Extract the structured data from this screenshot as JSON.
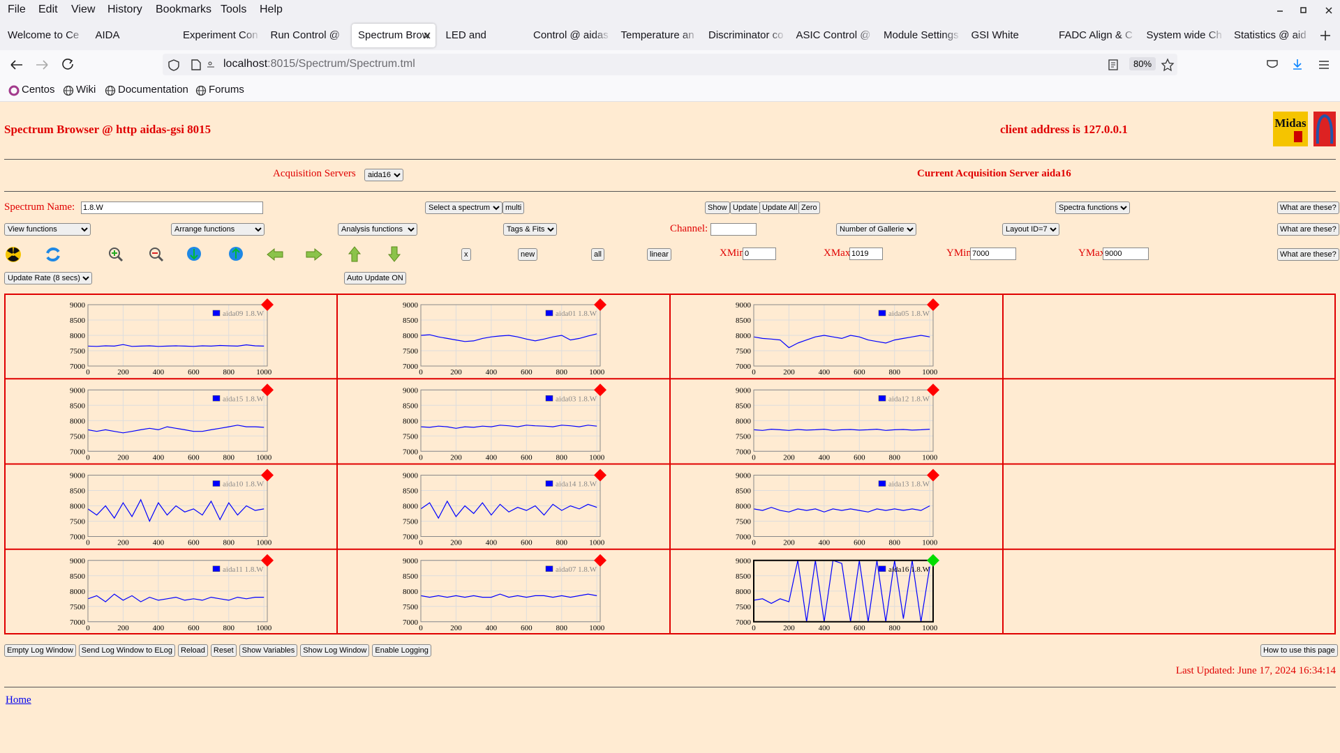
{
  "browser": {
    "menu": [
      "File",
      "Edit",
      "View",
      "History",
      "Bookmarks",
      "Tools",
      "Help"
    ],
    "tabs": [
      "Welcome to Ce",
      "AIDA",
      "Experiment Con",
      "Run Control @ a",
      "Spectrum Brow",
      "LED and Wavefo",
      "Control @ aidas",
      "Temperature an",
      "Discriminator co",
      "ASIC Control @",
      "Module Settings",
      "GSI White Rabbi",
      "FADC Align & C",
      "System wide Ch",
      "Statistics @ aid"
    ],
    "active_tab": 4,
    "url_host": "localhost",
    "url_path": ":8015/Spectrum/Spectrum.tml",
    "zoom": "80%",
    "bookmarks": [
      "Centos",
      "Wiki",
      "Documentation",
      "Forums"
    ]
  },
  "page": {
    "title": "Spectrum Browser @ http aidas-gsi 8015",
    "client_address": "client address is 127.0.0.1",
    "logo_text": "Midas",
    "acq_label": "Acquisition Servers",
    "acq_select": "aida16",
    "current_server": "Current Acquisition Server aida16",
    "spectrum_name_label": "Spectrum Name:",
    "spectrum_name": "1.8.W",
    "select_spectrum": "Select a spectrum",
    "multi": "multi",
    "show": "Show",
    "update": "Update",
    "update_all": "Update All",
    "zero": "Zero",
    "spectra_functions": "Spectra functions",
    "help": "What are these?",
    "view_functions": "View functions",
    "arrange_functions": "Arrange functions",
    "analysis_functions": "Analysis functions",
    "tags_fits": "Tags & Fits",
    "channel_label": "Channel:",
    "galleries": "Number of Galleries",
    "layout": "Layout ID=7",
    "x_button": "x",
    "new": "new",
    "all": "all",
    "linear": "linear",
    "xmin_label": "XMin",
    "xmin": "0",
    "xmax_label": "XMax",
    "xmax": "1019",
    "ymin_label": "YMin",
    "ymin": "7000",
    "ymax_label": "YMax",
    "ymax": "9000",
    "update_rate": "Update Rate (8 secs)",
    "auto_update": "Auto Update ON",
    "bottom_buttons": [
      "Empty Log Window",
      "Send Log Window to ELog",
      "Reload",
      "Reset",
      "Show Variables",
      "Show Log Window",
      "Enable Logging"
    ],
    "how_to": "How to use this page",
    "last_updated": "Last Updated: June 17, 2024 16:34:14",
    "home": "Home"
  },
  "chart_data": [
    {
      "type": "line",
      "series": [
        {
          "name": "aida09 1.8.W",
          "color": "#0000ff",
          "values": [
            7650,
            7640,
            7660,
            7650,
            7700,
            7640,
            7650,
            7660,
            7640,
            7650,
            7660,
            7650,
            7640,
            7660,
            7650,
            7670,
            7660,
            7650,
            7690,
            7660,
            7650
          ]
        }
      ],
      "x": [
        0,
        50,
        100,
        150,
        200,
        250,
        300,
        350,
        400,
        450,
        500,
        550,
        600,
        650,
        700,
        750,
        800,
        850,
        900,
        950,
        1000
      ],
      "xlim": [
        0,
        1019
      ],
      "ylim": [
        7000,
        9000
      ],
      "xticks": [
        0,
        200,
        400,
        600,
        800,
        1000
      ],
      "yticks": [
        7000,
        7500,
        8000,
        8500,
        9000
      ],
      "grid": true,
      "status_color": "#ff0000",
      "selected": false
    },
    {
      "type": "line",
      "series": [
        {
          "name": "aida01 1.8.W",
          "color": "#0000ff",
          "values": [
            8000,
            8020,
            7950,
            7900,
            7850,
            7800,
            7820,
            7900,
            7950,
            7980,
            8000,
            7950,
            7880,
            7820,
            7880,
            7950,
            8000,
            7850,
            7900,
            7980,
            8050
          ]
        }
      ],
      "x": [
        0,
        50,
        100,
        150,
        200,
        250,
        300,
        350,
        400,
        450,
        500,
        550,
        600,
        650,
        700,
        750,
        800,
        850,
        900,
        950,
        1000
      ],
      "xlim": [
        0,
        1019
      ],
      "ylim": [
        7000,
        9000
      ],
      "xticks": [
        0,
        200,
        400,
        600,
        800,
        1000
      ],
      "yticks": [
        7000,
        7500,
        8000,
        8500,
        9000
      ],
      "grid": true,
      "status_color": "#ff0000",
      "selected": false
    },
    {
      "type": "line",
      "series": [
        {
          "name": "aida05 1.8.W",
          "color": "#0000ff",
          "values": [
            7950,
            7900,
            7880,
            7850,
            7600,
            7750,
            7850,
            7950,
            8000,
            7950,
            7900,
            8000,
            7950,
            7850,
            7800,
            7750,
            7850,
            7900,
            7950,
            8000,
            7950
          ]
        }
      ],
      "x": [
        0,
        50,
        100,
        150,
        200,
        250,
        300,
        350,
        400,
        450,
        500,
        550,
        600,
        650,
        700,
        750,
        800,
        850,
        900,
        950,
        1000
      ],
      "xlim": [
        0,
        1019
      ],
      "ylim": [
        7000,
        9000
      ],
      "xticks": [
        0,
        200,
        400,
        600,
        800,
        1000
      ],
      "yticks": [
        7000,
        7500,
        8000,
        8500,
        9000
      ],
      "grid": true,
      "status_color": "#ff0000",
      "selected": false
    },
    {
      "type": "line",
      "series": [
        {
          "name": "aida15 1.8.W",
          "color": "#0000ff",
          "values": [
            7700,
            7650,
            7700,
            7650,
            7600,
            7650,
            7700,
            7750,
            7700,
            7800,
            7750,
            7700,
            7650,
            7650,
            7700,
            7750,
            7800,
            7850,
            7800,
            7800,
            7780
          ]
        }
      ],
      "x": [
        0,
        50,
        100,
        150,
        200,
        250,
        300,
        350,
        400,
        450,
        500,
        550,
        600,
        650,
        700,
        750,
        800,
        850,
        900,
        950,
        1000
      ],
      "xlim": [
        0,
        1019
      ],
      "ylim": [
        7000,
        9000
      ],
      "xticks": [
        0,
        200,
        400,
        600,
        800,
        1000
      ],
      "yticks": [
        7000,
        7500,
        8000,
        8500,
        9000
      ],
      "grid": true,
      "status_color": "#ff0000",
      "selected": false
    },
    {
      "type": "line",
      "series": [
        {
          "name": "aida03 1.8.W",
          "color": "#0000ff",
          "values": [
            7800,
            7780,
            7820,
            7800,
            7750,
            7800,
            7780,
            7820,
            7800,
            7850,
            7830,
            7800,
            7850,
            7830,
            7820,
            7800,
            7850,
            7830,
            7800,
            7850,
            7820
          ]
        }
      ],
      "x": [
        0,
        50,
        100,
        150,
        200,
        250,
        300,
        350,
        400,
        450,
        500,
        550,
        600,
        650,
        700,
        750,
        800,
        850,
        900,
        950,
        1000
      ],
      "xlim": [
        0,
        1019
      ],
      "ylim": [
        7000,
        9000
      ],
      "xticks": [
        0,
        200,
        400,
        600,
        800,
        1000
      ],
      "yticks": [
        7000,
        7500,
        8000,
        8500,
        9000
      ],
      "grid": true,
      "status_color": "#ff0000",
      "selected": false
    },
    {
      "type": "line",
      "series": [
        {
          "name": "aida12 1.8.W",
          "color": "#0000ff",
          "values": [
            7700,
            7680,
            7720,
            7700,
            7680,
            7710,
            7690,
            7700,
            7720,
            7680,
            7700,
            7710,
            7690,
            7700,
            7720,
            7680,
            7700,
            7710,
            7690,
            7700,
            7720
          ]
        }
      ],
      "x": [
        0,
        50,
        100,
        150,
        200,
        250,
        300,
        350,
        400,
        450,
        500,
        550,
        600,
        650,
        700,
        750,
        800,
        850,
        900,
        950,
        1000
      ],
      "xlim": [
        0,
        1019
      ],
      "ylim": [
        7000,
        9000
      ],
      "xticks": [
        0,
        200,
        400,
        600,
        800,
        1000
      ],
      "yticks": [
        7000,
        7500,
        8000,
        8500,
        9000
      ],
      "grid": true,
      "status_color": "#ff0000",
      "selected": false
    },
    {
      "type": "line",
      "series": [
        {
          "name": "aida10 1.8.W",
          "color": "#0000ff",
          "values": [
            7900,
            7700,
            8000,
            7600,
            8100,
            7650,
            8200,
            7500,
            8100,
            7700,
            8000,
            7800,
            7900,
            7700,
            8150,
            7550,
            8100,
            7700,
            8000,
            7850,
            7900
          ]
        }
      ],
      "x": [
        0,
        50,
        100,
        150,
        200,
        250,
        300,
        350,
        400,
        450,
        500,
        550,
        600,
        650,
        700,
        750,
        800,
        850,
        900,
        950,
        1000
      ],
      "xlim": [
        0,
        1019
      ],
      "ylim": [
        7000,
        9000
      ],
      "xticks": [
        0,
        200,
        400,
        600,
        800,
        1000
      ],
      "yticks": [
        7000,
        7500,
        8000,
        8500,
        9000
      ],
      "grid": true,
      "status_color": "#ff0000",
      "selected": false
    },
    {
      "type": "line",
      "series": [
        {
          "name": "aida14 1.8.W",
          "color": "#0000ff",
          "values": [
            7900,
            8100,
            7600,
            8150,
            7650,
            8000,
            7750,
            8100,
            7700,
            8050,
            7800,
            7950,
            7850,
            8000,
            7700,
            8050,
            7850,
            8000,
            7900,
            8050,
            7950
          ]
        }
      ],
      "x": [
        0,
        50,
        100,
        150,
        200,
        250,
        300,
        350,
        400,
        450,
        500,
        550,
        600,
        650,
        700,
        750,
        800,
        850,
        900,
        950,
        1000
      ],
      "xlim": [
        0,
        1019
      ],
      "ylim": [
        7000,
        9000
      ],
      "xticks": [
        0,
        200,
        400,
        600,
        800,
        1000
      ],
      "yticks": [
        7000,
        7500,
        8000,
        8500,
        9000
      ],
      "grid": true,
      "status_color": "#ff0000",
      "selected": false
    },
    {
      "type": "line",
      "series": [
        {
          "name": "aida13 1.8.W",
          "color": "#0000ff",
          "values": [
            7900,
            7850,
            7950,
            7850,
            7800,
            7900,
            7850,
            7900,
            7800,
            7900,
            7850,
            7900,
            7850,
            7800,
            7900,
            7850,
            7900,
            7850,
            7900,
            7850,
            8000
          ]
        }
      ],
      "x": [
        0,
        50,
        100,
        150,
        200,
        250,
        300,
        350,
        400,
        450,
        500,
        550,
        600,
        650,
        700,
        750,
        800,
        850,
        900,
        950,
        1000
      ],
      "xlim": [
        0,
        1019
      ],
      "ylim": [
        7000,
        9000
      ],
      "xticks": [
        0,
        200,
        400,
        600,
        800,
        1000
      ],
      "yticks": [
        7000,
        7500,
        8000,
        8500,
        9000
      ],
      "grid": true,
      "status_color": "#ff0000",
      "selected": false
    },
    {
      "type": "line",
      "series": [
        {
          "name": "aida11 1.8.W",
          "color": "#0000ff",
          "values": [
            7750,
            7850,
            7650,
            7900,
            7700,
            7850,
            7650,
            7800,
            7700,
            7750,
            7800,
            7700,
            7750,
            7700,
            7800,
            7750,
            7700,
            7800,
            7750,
            7800,
            7800
          ]
        }
      ],
      "x": [
        0,
        50,
        100,
        150,
        200,
        250,
        300,
        350,
        400,
        450,
        500,
        550,
        600,
        650,
        700,
        750,
        800,
        850,
        900,
        950,
        1000
      ],
      "xlim": [
        0,
        1019
      ],
      "ylim": [
        7000,
        9000
      ],
      "xticks": [
        0,
        200,
        400,
        600,
        800,
        1000
      ],
      "yticks": [
        7000,
        7500,
        8000,
        8500,
        9000
      ],
      "grid": true,
      "status_color": "#ff0000",
      "selected": false
    },
    {
      "type": "line",
      "series": [
        {
          "name": "aida07 1.8.W",
          "color": "#0000ff",
          "values": [
            7850,
            7800,
            7850,
            7800,
            7850,
            7800,
            7850,
            7800,
            7800,
            7900,
            7800,
            7850,
            7800,
            7850,
            7850,
            7800,
            7850,
            7800,
            7850,
            7900,
            7850
          ]
        }
      ],
      "x": [
        0,
        50,
        100,
        150,
        200,
        250,
        300,
        350,
        400,
        450,
        500,
        550,
        600,
        650,
        700,
        750,
        800,
        850,
        900,
        950,
        1000
      ],
      "xlim": [
        0,
        1019
      ],
      "ylim": [
        7000,
        9000
      ],
      "xticks": [
        0,
        200,
        400,
        600,
        800,
        1000
      ],
      "yticks": [
        7000,
        7500,
        8000,
        8500,
        9000
      ],
      "grid": true,
      "status_color": "#ff0000",
      "selected": false
    },
    {
      "type": "line",
      "series": [
        {
          "name": "aida16 1.8.W",
          "color": "#0000ff",
          "values": [
            7700,
            7750,
            7600,
            7750,
            7650,
            9000,
            7000,
            9000,
            7000,
            9000,
            8900,
            7000,
            9000,
            7000,
            9000,
            7000,
            9000,
            7100,
            9000,
            7000,
            8800
          ]
        }
      ],
      "x": [
        0,
        50,
        100,
        150,
        200,
        250,
        300,
        350,
        400,
        450,
        500,
        550,
        600,
        650,
        700,
        750,
        800,
        850,
        900,
        950,
        1000
      ],
      "xlim": [
        0,
        1019
      ],
      "ylim": [
        7000,
        9000
      ],
      "xticks": [
        0,
        200,
        400,
        600,
        800,
        1000
      ],
      "yticks": [
        7000,
        7500,
        8000,
        8500,
        9000
      ],
      "grid": true,
      "status_color": "#00dd00",
      "selected": true
    }
  ]
}
